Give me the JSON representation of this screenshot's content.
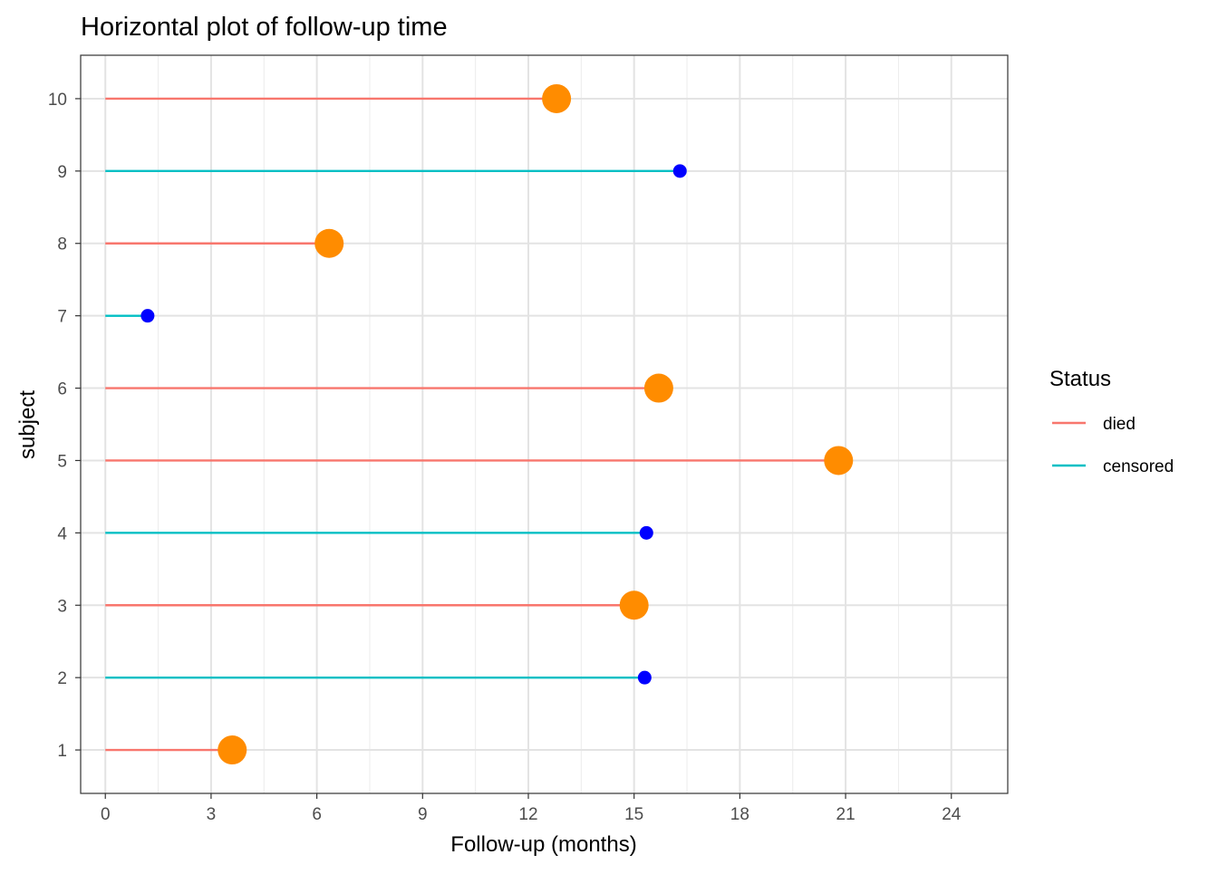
{
  "chart_data": {
    "type": "lollipop",
    "orientation": "horizontal",
    "title": "Horizontal plot of follow-up time",
    "xlabel": "Follow-up (months)",
    "ylabel": "subject",
    "xlim": [
      -0.7,
      25.6
    ],
    "ylim": [
      0.4,
      10.6
    ],
    "x_ticks": [
      0,
      3,
      6,
      9,
      12,
      15,
      18,
      21,
      24
    ],
    "y_ticks": [
      1,
      2,
      3,
      4,
      5,
      6,
      7,
      8,
      9,
      10
    ],
    "grid": true,
    "legend": {
      "title": "Status",
      "placement": "right",
      "entries": [
        {
          "label": "died",
          "color": "#F8766D"
        },
        {
          "label": "censored",
          "color": "#00BFC4"
        }
      ]
    },
    "marker_colors": {
      "died": "#FF8C00",
      "censored": "#0000FF"
    },
    "points": [
      {
        "subject": 1,
        "followup": 3.6,
        "status": "died"
      },
      {
        "subject": 2,
        "followup": 15.3,
        "status": "censored"
      },
      {
        "subject": 3,
        "followup": 15.0,
        "status": "died"
      },
      {
        "subject": 4,
        "followup": 15.35,
        "status": "censored"
      },
      {
        "subject": 5,
        "followup": 20.8,
        "status": "died"
      },
      {
        "subject": 6,
        "followup": 15.7,
        "status": "died"
      },
      {
        "subject": 7,
        "followup": 1.2,
        "status": "censored"
      },
      {
        "subject": 8,
        "followup": 6.35,
        "status": "died"
      },
      {
        "subject": 9,
        "followup": 16.3,
        "status": "censored"
      },
      {
        "subject": 10,
        "followup": 12.8,
        "status": "died"
      }
    ]
  }
}
